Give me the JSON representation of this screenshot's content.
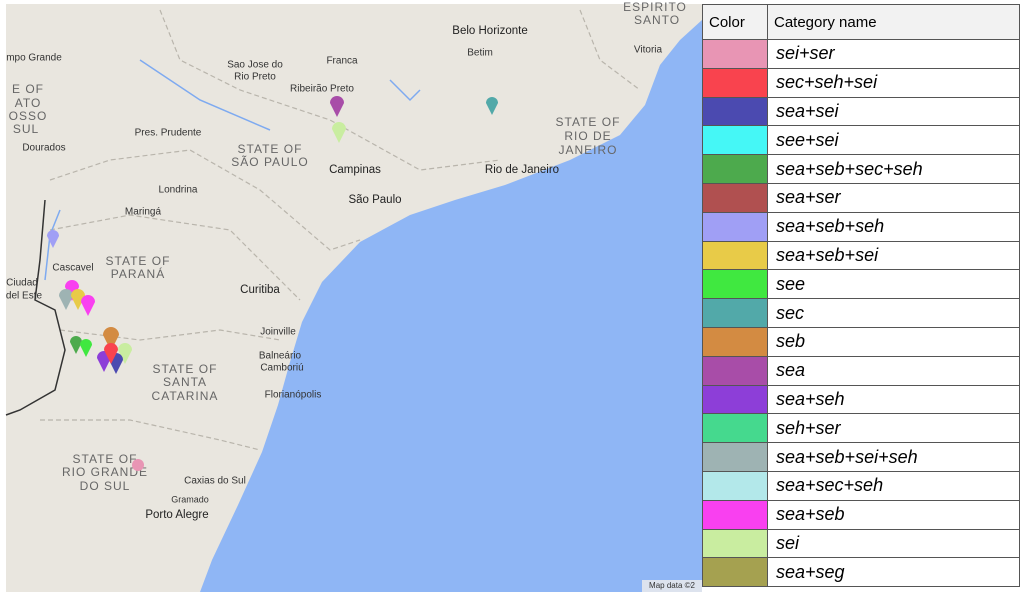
{
  "map": {
    "labels": {
      "espirito": "ESPIRITO",
      "santo": "SANTO",
      "vitoria": "Vitoria",
      "belo_horizonte": "Belo Horizonte",
      "betim": "Betim",
      "campo_grande": "mpo Grande",
      "sao_jose_1": "Sao Jose do",
      "sao_jose_2": "Rio Preto",
      "franca": "Franca",
      "ribeirao_preto": "Ribeirão Preto",
      "ms_1": "E OF",
      "ms_2": "ATO",
      "ms_3": "OSSO",
      "ms_4": "SUL",
      "rj_1": "STATE OF",
      "rj_2": "RIO DE",
      "rj_3": "JANEIRO",
      "pres_prudente": "Pres. Prudente",
      "sp_1": "STATE OF",
      "sp_2": "SÃO PAULO",
      "dourados": "Dourados",
      "campinas": "Campinas",
      "rio_de_janeiro": "Rio de Janeiro",
      "londrina": "Londrina",
      "sao_paulo": "São Paulo",
      "maringa": "Maringá",
      "pr_1": "STATE OF",
      "pr_2": "PARANÁ",
      "cascavel": "Cascavel",
      "ciudad_1": "Ciudad",
      "ciudad_2": "del Este",
      "curitiba": "Curitiba",
      "joinville": "Joinville",
      "balneario_1": "Balneário",
      "balneario_2": "Camboriú",
      "sc_1": "STATE OF",
      "sc_2": "SANTA",
      "sc_3": "CATARINA",
      "florianopolis": "Florianópolis",
      "rs_1": "STATE OF",
      "rs_2": "RIO GRANDE",
      "rs_3": "DO SUL",
      "caxias": "Caxias do Sul",
      "gramado": "Gramado",
      "porto_alegre": "Porto Alegre"
    },
    "attribution": "Map data ©2"
  },
  "legend": {
    "headers": [
      "Color",
      "Category name"
    ],
    "rows": [
      {
        "color": "#e895b4",
        "name": "sei+ser"
      },
      {
        "color": "#f9434e",
        "name": "sec+seh+sei"
      },
      {
        "color": "#4b4ab0",
        "name": "sea+sei"
      },
      {
        "color": "#45f7f6",
        "name": "see+sei"
      },
      {
        "color": "#4daa4d",
        "name": "sea+seb+sec+seh"
      },
      {
        "color": "#b05050",
        "name": "sea+ser"
      },
      {
        "color": "#a09ff5",
        "name": "sea+seb+seh"
      },
      {
        "color": "#e8cb48",
        "name": "sea+seb+sei"
      },
      {
        "color": "#40e840",
        "name": "see"
      },
      {
        "color": "#52a9a9",
        "name": "sec"
      },
      {
        "color": "#d38b42",
        "name": "seb"
      },
      {
        "color": "#a84da8",
        "name": "sea"
      },
      {
        "color": "#8d3ed8",
        "name": "sea+seh"
      },
      {
        "color": "#45d98e",
        "name": "seh+ser"
      },
      {
        "color": "#9eb3b3",
        "name": "sea+seb+sei+seh"
      },
      {
        "color": "#b3e8ea",
        "name": "sea+sec+seh"
      },
      {
        "color": "#f940f0",
        "name": "sea+seb"
      },
      {
        "color": "#c9eda0",
        "name": "sei"
      },
      {
        "color": "#a5a150",
        "name": "sea+seg"
      }
    ]
  }
}
